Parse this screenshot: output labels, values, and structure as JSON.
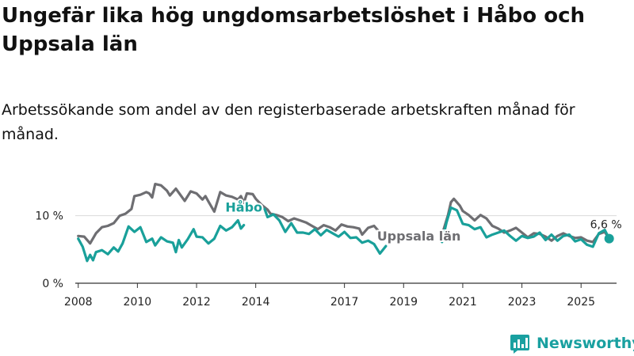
{
  "title": "Ungefär lika hög ungdomsarbetslöshet i Håbo och Uppsala län",
  "subtitle": "Arbetssökande som andel av den registerbaserade arbetskraften månad för månad.",
  "brand": {
    "name": "Newsworthy",
    "icon": "newsworthy-logo-icon",
    "color": "#19a0a0"
  },
  "chart_data": {
    "type": "line",
    "ylim": [
      0,
      15
    ],
    "xlim": [
      2007.9,
      2026.2
    ],
    "y_ticks": [
      {
        "value": 0,
        "label": "0 %"
      },
      {
        "value": 10,
        "label": "10 %"
      }
    ],
    "x_ticks": [
      {
        "value": 2008,
        "label": "2008"
      },
      {
        "value": 2010,
        "label": "2010"
      },
      {
        "value": 2012,
        "label": "2012"
      },
      {
        "value": 2014,
        "label": "2014"
      },
      {
        "value": 2017,
        "label": "2017"
      },
      {
        "value": 2019,
        "label": "2019"
      },
      {
        "value": 2021,
        "label": "2021"
      },
      {
        "value": 2023,
        "label": "2023"
      },
      {
        "value": 2025,
        "label": "2025"
      }
    ],
    "gridlines": [
      10
    ],
    "series": [
      {
        "name": "Uppsala län",
        "color": "#6e6e72",
        "label_at": [
          2018.1,
          6.3
        ],
        "points": [
          [
            2008.0,
            7.0
          ],
          [
            2008.2,
            6.9
          ],
          [
            2008.4,
            5.9
          ],
          [
            2008.6,
            7.4
          ],
          [
            2008.8,
            8.3
          ],
          [
            2009.0,
            8.5
          ],
          [
            2009.2,
            8.9
          ],
          [
            2009.4,
            10.0
          ],
          [
            2009.6,
            10.3
          ],
          [
            2009.8,
            11.0
          ],
          [
            2009.9,
            12.9
          ],
          [
            2010.1,
            13.1
          ],
          [
            2010.3,
            13.5
          ],
          [
            2010.4,
            13.3
          ],
          [
            2010.5,
            12.7
          ],
          [
            2010.6,
            14.7
          ],
          [
            2010.8,
            14.5
          ],
          [
            2011.0,
            13.7
          ],
          [
            2011.1,
            13.0
          ],
          [
            2011.3,
            14.0
          ],
          [
            2011.5,
            12.8
          ],
          [
            2011.6,
            12.2
          ],
          [
            2011.8,
            13.6
          ],
          [
            2012.0,
            13.3
          ],
          [
            2012.2,
            12.4
          ],
          [
            2012.3,
            12.9
          ],
          [
            2012.4,
            12.1
          ],
          [
            2012.6,
            10.6
          ],
          [
            2012.8,
            13.5
          ],
          [
            2013.0,
            13.0
          ],
          [
            2013.2,
            12.8
          ],
          [
            2013.4,
            12.4
          ],
          [
            2013.5,
            12.9
          ],
          [
            2013.6,
            11.9
          ],
          [
            2013.7,
            13.3
          ],
          [
            2013.9,
            13.2
          ],
          [
            2014.0,
            12.5
          ],
          [
            2014.2,
            11.6
          ],
          [
            2014.4,
            10.9
          ],
          [
            2014.5,
            10.3
          ],
          [
            2014.7,
            10.1
          ],
          [
            2014.9,
            9.8
          ],
          [
            2015.1,
            9.2
          ],
          [
            2015.3,
            9.6
          ],
          [
            2015.5,
            9.3
          ],
          [
            2015.7,
            9.0
          ],
          [
            2015.9,
            8.5
          ],
          [
            2016.1,
            8.0
          ],
          [
            2016.3,
            8.6
          ],
          [
            2016.5,
            8.3
          ],
          [
            2016.7,
            7.8
          ],
          [
            2016.9,
            8.7
          ],
          [
            2017.1,
            8.4
          ],
          [
            2017.3,
            8.3
          ],
          [
            2017.5,
            8.1
          ],
          [
            2017.6,
            7.2
          ],
          [
            2017.8,
            8.2
          ],
          [
            2018.0,
            8.5
          ],
          [
            2018.2,
            7.5
          ]
        ],
        "points2": [
          [
            2020.3,
            7.2
          ],
          [
            2020.5,
            10.1
          ],
          [
            2020.6,
            12.0
          ],
          [
            2020.7,
            12.5
          ],
          [
            2020.9,
            11.5
          ],
          [
            2021.0,
            10.7
          ],
          [
            2021.2,
            10.1
          ],
          [
            2021.4,
            9.3
          ],
          [
            2021.6,
            10.1
          ],
          [
            2021.8,
            9.6
          ],
          [
            2022.0,
            8.5
          ],
          [
            2022.2,
            8.1
          ],
          [
            2022.4,
            7.5
          ],
          [
            2022.6,
            7.8
          ],
          [
            2022.8,
            8.2
          ],
          [
            2023.0,
            7.5
          ],
          [
            2023.2,
            6.8
          ],
          [
            2023.4,
            7.4
          ],
          [
            2023.6,
            7.3
          ],
          [
            2023.8,
            6.9
          ],
          [
            2024.0,
            6.3
          ],
          [
            2024.2,
            7.0
          ],
          [
            2024.4,
            7.4
          ],
          [
            2024.6,
            7.0
          ],
          [
            2024.8,
            6.7
          ],
          [
            2025.0,
            6.8
          ],
          [
            2025.2,
            6.3
          ],
          [
            2025.4,
            6.1
          ],
          [
            2025.6,
            7.3
          ],
          [
            2025.8,
            7.6
          ],
          [
            2025.95,
            6.6
          ]
        ]
      },
      {
        "name": "Håbo",
        "color": "#19a09a",
        "label_at": [
          2013.6,
          10.6
        ],
        "points": [
          [
            2008.0,
            6.6
          ],
          [
            2008.15,
            5.4
          ],
          [
            2008.3,
            3.3
          ],
          [
            2008.4,
            4.2
          ],
          [
            2008.5,
            3.4
          ],
          [
            2008.6,
            4.6
          ],
          [
            2008.8,
            4.9
          ],
          [
            2009.0,
            4.3
          ],
          [
            2009.2,
            5.3
          ],
          [
            2009.35,
            4.7
          ],
          [
            2009.5,
            5.9
          ],
          [
            2009.7,
            8.4
          ],
          [
            2009.9,
            7.6
          ],
          [
            2010.1,
            8.3
          ],
          [
            2010.3,
            6.1
          ],
          [
            2010.5,
            6.6
          ],
          [
            2010.6,
            5.6
          ],
          [
            2010.8,
            6.8
          ],
          [
            2011.0,
            6.2
          ],
          [
            2011.2,
            6.0
          ],
          [
            2011.3,
            4.6
          ],
          [
            2011.4,
            6.4
          ],
          [
            2011.5,
            5.3
          ],
          [
            2011.7,
            6.5
          ],
          [
            2011.9,
            8.0
          ],
          [
            2012.0,
            6.9
          ],
          [
            2012.2,
            6.8
          ],
          [
            2012.4,
            5.9
          ],
          [
            2012.6,
            6.6
          ],
          [
            2012.8,
            8.5
          ],
          [
            2013.0,
            7.8
          ],
          [
            2013.2,
            8.3
          ],
          [
            2013.4,
            9.3
          ],
          [
            2013.5,
            8.1
          ],
          [
            2013.6,
            8.6
          ]
        ],
        "points2": [
          [
            2014.3,
            11.0
          ],
          [
            2014.4,
            9.8
          ],
          [
            2014.6,
            10.2
          ],
          [
            2014.8,
            9.3
          ],
          [
            2015.0,
            7.6
          ],
          [
            2015.2,
            8.9
          ],
          [
            2015.4,
            7.5
          ],
          [
            2015.6,
            7.5
          ],
          [
            2015.8,
            7.3
          ],
          [
            2016.0,
            8.0
          ],
          [
            2016.2,
            7.1
          ],
          [
            2016.4,
            7.9
          ],
          [
            2016.6,
            7.4
          ],
          [
            2016.8,
            6.9
          ],
          [
            2017.0,
            7.6
          ],
          [
            2017.2,
            6.7
          ],
          [
            2017.4,
            6.8
          ],
          [
            2017.6,
            6.0
          ],
          [
            2017.8,
            6.3
          ],
          [
            2018.0,
            5.8
          ],
          [
            2018.2,
            4.4
          ],
          [
            2018.4,
            5.5
          ]
        ],
        "points3": [
          [
            2020.3,
            6.1
          ],
          [
            2020.45,
            9.0
          ],
          [
            2020.6,
            11.2
          ],
          [
            2020.8,
            10.8
          ],
          [
            2021.0,
            8.8
          ],
          [
            2021.2,
            8.6
          ],
          [
            2021.4,
            8.0
          ],
          [
            2021.6,
            8.3
          ],
          [
            2021.8,
            6.8
          ],
          [
            2022.0,
            7.2
          ],
          [
            2022.2,
            7.5
          ],
          [
            2022.4,
            7.8
          ],
          [
            2022.6,
            7.0
          ],
          [
            2022.8,
            6.3
          ],
          [
            2023.0,
            7.0
          ],
          [
            2023.2,
            6.7
          ],
          [
            2023.4,
            6.9
          ],
          [
            2023.6,
            7.5
          ],
          [
            2023.8,
            6.4
          ],
          [
            2024.0,
            7.2
          ],
          [
            2024.2,
            6.3
          ],
          [
            2024.4,
            7.0
          ],
          [
            2024.6,
            7.2
          ],
          [
            2024.8,
            6.2
          ],
          [
            2025.0,
            6.5
          ],
          [
            2025.2,
            5.7
          ],
          [
            2025.4,
            5.4
          ],
          [
            2025.6,
            7.4
          ],
          [
            2025.8,
            7.9
          ],
          [
            2025.95,
            6.6
          ]
        ]
      }
    ],
    "end_label": {
      "text": "6,6 %",
      "value": 6.6,
      "x": 2025.95
    }
  }
}
